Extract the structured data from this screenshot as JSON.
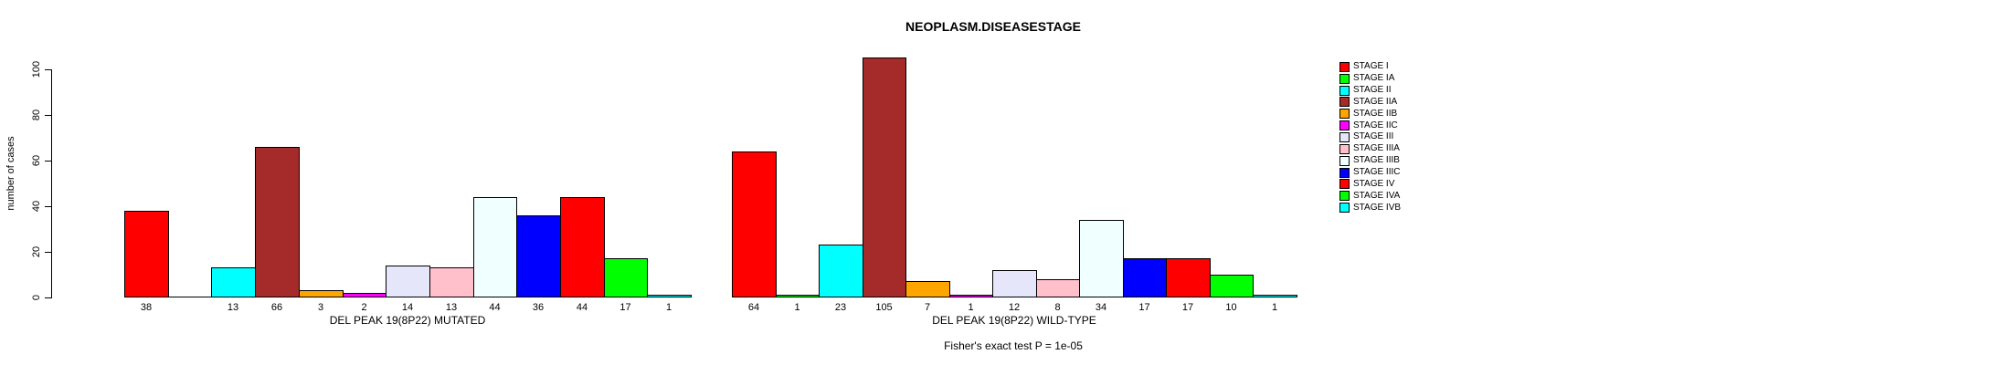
{
  "figure": {
    "title": "NEOPLASM.DISEASESTAGE",
    "footer_annotation": "Fisher's exact test P = 1e-05"
  },
  "chart_data": {
    "type": "bar",
    "title": "NEOPLASM.DISEASESTAGE",
    "xlabel": "",
    "ylabel": "number of cases",
    "ylim": [
      0,
      105
    ],
    "yticks": [
      0,
      20,
      40,
      60,
      80,
      100
    ],
    "grid": false,
    "legend_position": "right",
    "categories": [
      "STAGE I",
      "STAGE IA",
      "STAGE II",
      "STAGE IIA",
      "STAGE IIB",
      "STAGE IIC",
      "STAGE III",
      "STAGE IIIA",
      "STAGE IIIB",
      "STAGE IIIC",
      "STAGE IV",
      "STAGE IVA",
      "STAGE IVB"
    ],
    "colors": [
      "#FF0000",
      "#00FF00",
      "#00FFFF",
      "#A52A2A",
      "#FFA500",
      "#FF00FF",
      "#E6E6FA",
      "#FFC0CB",
      "#F0FFFF",
      "#0000FF",
      "#FF0000",
      "#00FF00",
      "#00FFFF"
    ],
    "series": [
      {
        "name": "DEL PEAK 19(8P22) MUTATED",
        "values": [
          38,
          0,
          13,
          66,
          3,
          2,
          14,
          13,
          44,
          36,
          44,
          17,
          1
        ],
        "bar_labels": [
          "38",
          "",
          "13",
          "66",
          "3",
          "2",
          "14",
          "13",
          "44",
          "36",
          "44",
          "17",
          "1"
        ]
      },
      {
        "name": "DEL PEAK 19(8P22) WILD-TYPE",
        "values": [
          64,
          1,
          23,
          105,
          7,
          1,
          12,
          8,
          34,
          17,
          17,
          10,
          1
        ],
        "bar_labels": [
          "64",
          "1",
          "23",
          "105",
          "7",
          "1",
          "12",
          "8",
          "34",
          "17",
          "17",
          "10",
          "1"
        ]
      }
    ],
    "annotation": "Fisher's exact test P = 1e-05",
    "legend": [
      "STAGE I",
      "STAGE IA",
      "STAGE II",
      "STAGE IIA",
      "STAGE IIB",
      "STAGE IIC",
      "STAGE III",
      "STAGE IIIA",
      "STAGE IIIB",
      "STAGE IIIC",
      "STAGE IV",
      "STAGE IVA",
      "STAGE IVB"
    ]
  }
}
